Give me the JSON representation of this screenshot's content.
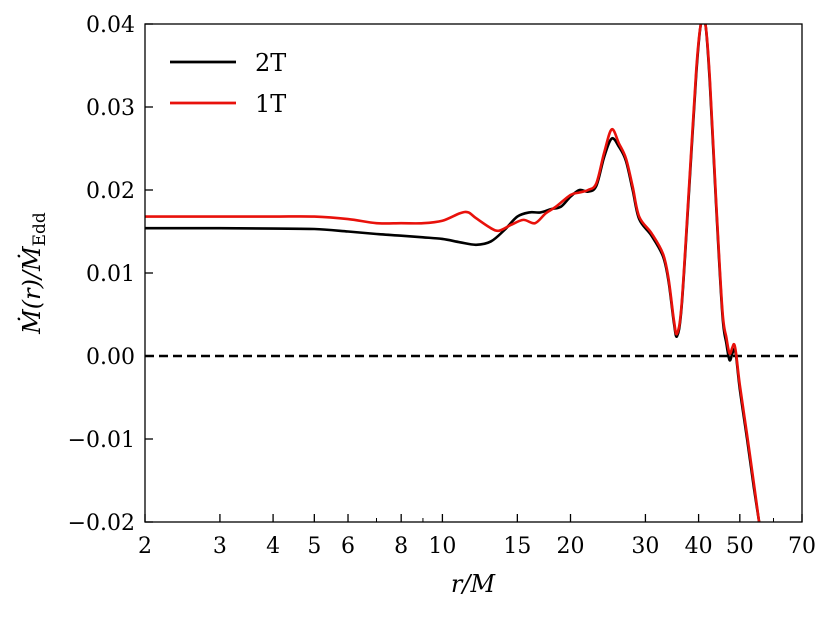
{
  "chart_data": {
    "type": "line",
    "xscale": "log",
    "xlim": [
      2,
      70
    ],
    "ylim": [
      -0.02,
      0.04
    ],
    "xlabel": "r/M",
    "ylabel": "Ṁ(r)/Ṁ",
    "ylabel_sub": "Edd",
    "x_ticks": [
      {
        "v": 2,
        "label": "2"
      },
      {
        "v": 3,
        "label": "3"
      },
      {
        "v": 4,
        "label": "4"
      },
      {
        "v": 5,
        "label": "5"
      },
      {
        "v": 6,
        "label": "6"
      },
      {
        "v": 8,
        "label": "8"
      },
      {
        "v": 10,
        "label": "10"
      },
      {
        "v": 15,
        "label": "15"
      },
      {
        "v": 20,
        "label": "20"
      },
      {
        "v": 30,
        "label": "30"
      },
      {
        "v": 40,
        "label": "40"
      },
      {
        "v": 50,
        "label": "50"
      },
      {
        "v": 70,
        "label": "70"
      }
    ],
    "x_minor_ticks": [
      7,
      9,
      60
    ],
    "y_ticks": [
      {
        "v": -0.02,
        "label": "−0.02"
      },
      {
        "v": -0.01,
        "label": "−0.01"
      },
      {
        "v": 0.0,
        "label": "0.00"
      },
      {
        "v": 0.01,
        "label": "0.01"
      },
      {
        "v": 0.02,
        "label": "0.02"
      },
      {
        "v": 0.03,
        "label": "0.03"
      },
      {
        "v": 0.04,
        "label": "0.04"
      }
    ],
    "reference_line": {
      "y": 0.0,
      "style": "dashed",
      "color": "#000000"
    },
    "legend": {
      "placement": "top-left"
    },
    "series": [
      {
        "name": "2T",
        "color": "#000000",
        "points": [
          [
            2,
            0.0154
          ],
          [
            3,
            0.0154
          ],
          [
            4,
            0.01535
          ],
          [
            5,
            0.0153
          ],
          [
            6,
            0.015
          ],
          [
            7,
            0.0147
          ],
          [
            8,
            0.0145
          ],
          [
            9,
            0.0143
          ],
          [
            10,
            0.0141
          ],
          [
            11,
            0.0137
          ],
          [
            12,
            0.0134
          ],
          [
            13,
            0.0138
          ],
          [
            14,
            0.0152
          ],
          [
            15,
            0.0168
          ],
          [
            16,
            0.0173
          ],
          [
            17,
            0.0173
          ],
          [
            18,
            0.0177
          ],
          [
            19,
            0.018
          ],
          [
            20,
            0.0192
          ],
          [
            21,
            0.02
          ],
          [
            22,
            0.0198
          ],
          [
            23,
            0.0205
          ],
          [
            24,
            0.024
          ],
          [
            25,
            0.0262
          ],
          [
            26,
            0.0252
          ],
          [
            27,
            0.0235
          ],
          [
            28,
            0.02
          ],
          [
            29,
            0.0165
          ],
          [
            31,
            0.0145
          ],
          [
            33,
            0.012
          ],
          [
            34,
            0.009
          ],
          [
            35,
            0.004
          ],
          [
            35.6,
            0.0024
          ],
          [
            36.5,
            0.006
          ],
          [
            38,
            0.02
          ],
          [
            39.5,
            0.034
          ],
          [
            40.5,
            0.04
          ],
          [
            41.5,
            0.04
          ],
          [
            42.5,
            0.033
          ],
          [
            44,
            0.018
          ],
          [
            45.5,
            0.005
          ],
          [
            46.5,
            0.0015
          ],
          [
            47.3,
            -0.0005
          ],
          [
            48,
            0.0003
          ],
          [
            48.5,
            0.0008
          ],
          [
            49,
            0.0
          ],
          [
            50,
            -0.004
          ],
          [
            52,
            -0.01
          ],
          [
            54,
            -0.016
          ],
          [
            55.5,
            -0.02
          ]
        ]
      },
      {
        "name": "1T",
        "color": "#e8110b",
        "points": [
          [
            2,
            0.0168
          ],
          [
            3,
            0.0168
          ],
          [
            4,
            0.0168
          ],
          [
            5,
            0.0168
          ],
          [
            6,
            0.0165
          ],
          [
            7,
            0.016
          ],
          [
            8,
            0.016
          ],
          [
            9,
            0.016
          ],
          [
            10,
            0.0163
          ],
          [
            11,
            0.0172
          ],
          [
            11.5,
            0.0173
          ],
          [
            12,
            0.0166
          ],
          [
            13,
            0.0154
          ],
          [
            13.6,
            0.0151
          ],
          [
            14.5,
            0.0158
          ],
          [
            15.5,
            0.0164
          ],
          [
            16.5,
            0.016
          ],
          [
            17.5,
            0.0172
          ],
          [
            18.5,
            0.018
          ],
          [
            20,
            0.0194
          ],
          [
            21,
            0.0197
          ],
          [
            22,
            0.02
          ],
          [
            23,
            0.0208
          ],
          [
            24,
            0.0245
          ],
          [
            25,
            0.0273
          ],
          [
            26,
            0.0256
          ],
          [
            27,
            0.0238
          ],
          [
            28,
            0.0204
          ],
          [
            29,
            0.0168
          ],
          [
            31,
            0.0148
          ],
          [
            33,
            0.0123
          ],
          [
            34,
            0.0093
          ],
          [
            35,
            0.0043
          ],
          [
            35.6,
            0.0027
          ],
          [
            36.5,
            0.0063
          ],
          [
            38,
            0.0205
          ],
          [
            39.5,
            0.0345
          ],
          [
            40.5,
            0.04
          ],
          [
            41.5,
            0.04
          ],
          [
            42.5,
            0.0335
          ],
          [
            44,
            0.0185
          ],
          [
            45.5,
            0.0055
          ],
          [
            46.5,
            0.0022
          ],
          [
            47.3,
            0.0003
          ],
          [
            48,
            0.001
          ],
          [
            48.5,
            0.0014
          ],
          [
            49,
            0.0003
          ],
          [
            50,
            -0.0035
          ],
          [
            52,
            -0.0095
          ],
          [
            54,
            -0.0155
          ],
          [
            55.5,
            -0.02
          ]
        ]
      }
    ]
  }
}
